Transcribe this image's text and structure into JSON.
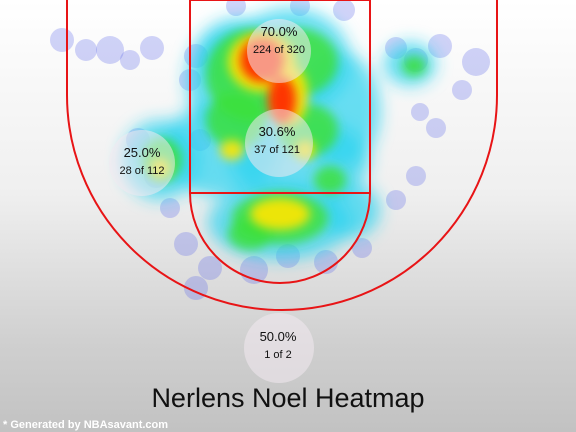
{
  "chart_data": {
    "type": "heatmap",
    "title": "Nerlens Noel Heatmap",
    "zones": [
      {
        "id": "restricted-area",
        "pct": "70.0%",
        "made": 224,
        "attempts": 320,
        "count_text": "224 of 320"
      },
      {
        "id": "paint",
        "pct": "30.6%",
        "made": 37,
        "attempts": 121,
        "count_text": "37 of 121"
      },
      {
        "id": "left-midrange",
        "pct": "25.0%",
        "made": 28,
        "attempts": 112,
        "count_text": "28 of 112"
      },
      {
        "id": "backcourt",
        "pct": "50.0%",
        "made": 1,
        "attempts": 2,
        "count_text": "1 of 2"
      }
    ],
    "grid": false,
    "colors": {
      "court_lines": "#e81416",
      "hot": "#ff2a00",
      "warm": "#ffe600",
      "mid": "#3ce03c",
      "cool": "#2ad3f0",
      "cold": "#5b63e8"
    }
  },
  "footer": {
    "credit": "* Generated by NBAsavant.com"
  }
}
